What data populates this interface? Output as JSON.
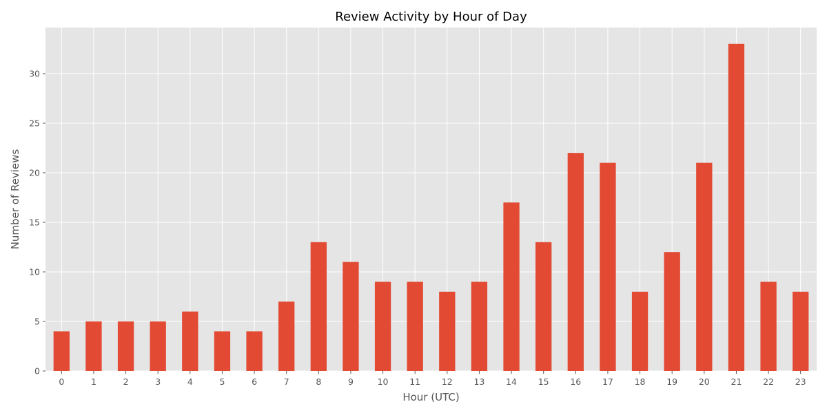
{
  "chart_data": {
    "type": "bar",
    "title": "Review Activity by Hour of Day",
    "xlabel": "Hour (UTC)",
    "ylabel": "Number of Reviews",
    "categories": [
      "0",
      "1",
      "2",
      "3",
      "4",
      "5",
      "6",
      "7",
      "8",
      "9",
      "10",
      "11",
      "12",
      "13",
      "14",
      "15",
      "16",
      "17",
      "18",
      "19",
      "20",
      "21",
      "22",
      "23"
    ],
    "values": [
      4,
      5,
      5,
      5,
      6,
      4,
      4,
      7,
      13,
      11,
      9,
      9,
      8,
      9,
      17,
      13,
      22,
      21,
      8,
      12,
      21,
      33,
      9,
      8
    ],
    "ylim": [
      0,
      34.65
    ],
    "yticks": [
      0,
      5,
      10,
      15,
      20,
      25,
      30
    ],
    "grid": true,
    "legend": "none",
    "colors": {
      "bar": "#E24A33",
      "plot_background": "#E5E5E5",
      "grid": "#FFFFFF",
      "text": "#555555",
      "title": "#000000"
    }
  }
}
